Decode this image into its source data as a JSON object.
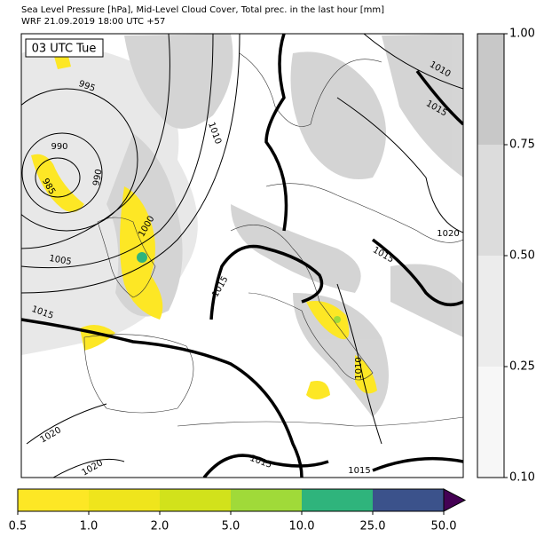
{
  "header": {
    "title": "Sea Level Pressure [hPa], Mid-Level Cloud Cover, Total prec. in the last hour [mm]",
    "subtitle": "WRF 21.09.2019 18:00 UTC +57"
  },
  "time_label": "03 UTC Tue",
  "isobar_labels": [
    "1010",
    "1015",
    "995",
    "1010",
    "990",
    "990",
    "985",
    "1000",
    "1020",
    "1015",
    "1005",
    "1015",
    "1015",
    "1010",
    "1020",
    "1020",
    "1015",
    "1015"
  ],
  "cloud_colorbar": {
    "ticks": [
      "0.10",
      "0.25",
      "0.50",
      "0.75",
      "1.00"
    ],
    "colors": [
      "#f7f7f7",
      "#ececec",
      "#dcdcdc",
      "#c8c8c8"
    ]
  },
  "precip_colorbar": {
    "ticks": [
      "0.5",
      "1.0",
      "2.0",
      "5.0",
      "10.0",
      "25.0",
      "50.0"
    ],
    "colors": [
      "#fde725",
      "#efe51c",
      "#d2e21b",
      "#a0da39",
      "#2fb47c",
      "#3b528b"
    ],
    "extend_color": "#440154"
  }
}
